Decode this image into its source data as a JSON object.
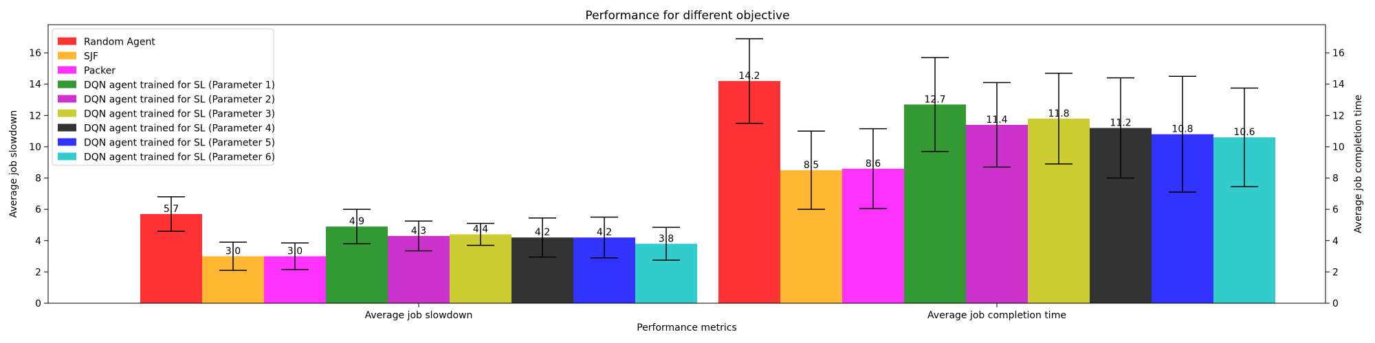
{
  "chart_data": {
    "type": "bar",
    "title": "Performance for different objective",
    "xlabel": "Performance metrics",
    "ylabel": "Average job slowdown",
    "ylabel_right": "Average job completion time",
    "categories": [
      "Average job slowdown",
      "Average job completion time"
    ],
    "ylim": [
      0,
      17.8
    ],
    "yticks": [
      0,
      2,
      4,
      6,
      8,
      10,
      12,
      14,
      16
    ],
    "grid": false,
    "legend_position": "top-left",
    "series": [
      {
        "name": "Random Agent",
        "color": "#ff0000",
        "values": [
          5.7,
          14.2
        ],
        "errors": [
          1.1,
          2.7
        ],
        "labels": [
          "5.7",
          "14.2"
        ]
      },
      {
        "name": "SJF",
        "color": "#ffa500",
        "values": [
          3.0,
          8.5
        ],
        "errors": [
          0.9,
          2.5
        ],
        "labels": [
          "3.0",
          "8.5"
        ]
      },
      {
        "name": "Packer",
        "color": "#ff00ff",
        "values": [
          3.0,
          8.6
        ],
        "errors": [
          0.85,
          2.55
        ],
        "labels": [
          "3.0",
          "8.6"
        ]
      },
      {
        "name": "DQN agent trained for SL (Parameter 1)",
        "color": "#008000",
        "values": [
          4.9,
          12.7
        ],
        "errors": [
          1.1,
          3.0
        ],
        "labels": [
          "4.9",
          "12.7"
        ]
      },
      {
        "name": "DQN agent trained for SL (Parameter 2)",
        "color": "#bf00bf",
        "values": [
          4.3,
          11.4
        ],
        "errors": [
          0.95,
          2.7
        ],
        "labels": [
          "4.3",
          "11.4"
        ]
      },
      {
        "name": "DQN agent trained for SL (Parameter 3)",
        "color": "#bfbf00",
        "values": [
          4.4,
          11.8
        ],
        "errors": [
          0.7,
          2.9
        ],
        "labels": [
          "4.4",
          "11.8"
        ]
      },
      {
        "name": "DQN agent trained for SL (Parameter 4)",
        "color": "#000000",
        "values": [
          4.2,
          11.2
        ],
        "errors": [
          1.25,
          3.2
        ],
        "labels": [
          "4.2",
          "11.2"
        ]
      },
      {
        "name": "DQN agent trained for SL (Parameter 5)",
        "color": "#0000ff",
        "values": [
          4.2,
          10.8
        ],
        "errors": [
          1.3,
          3.7
        ],
        "labels": [
          "4.2",
          "10.8"
        ]
      },
      {
        "name": "DQN agent trained for SL (Parameter 6)",
        "color": "#00bfbf",
        "values": [
          3.8,
          10.6
        ],
        "errors": [
          1.05,
          3.15
        ],
        "labels": [
          "3.8",
          "10.6"
        ]
      }
    ]
  }
}
